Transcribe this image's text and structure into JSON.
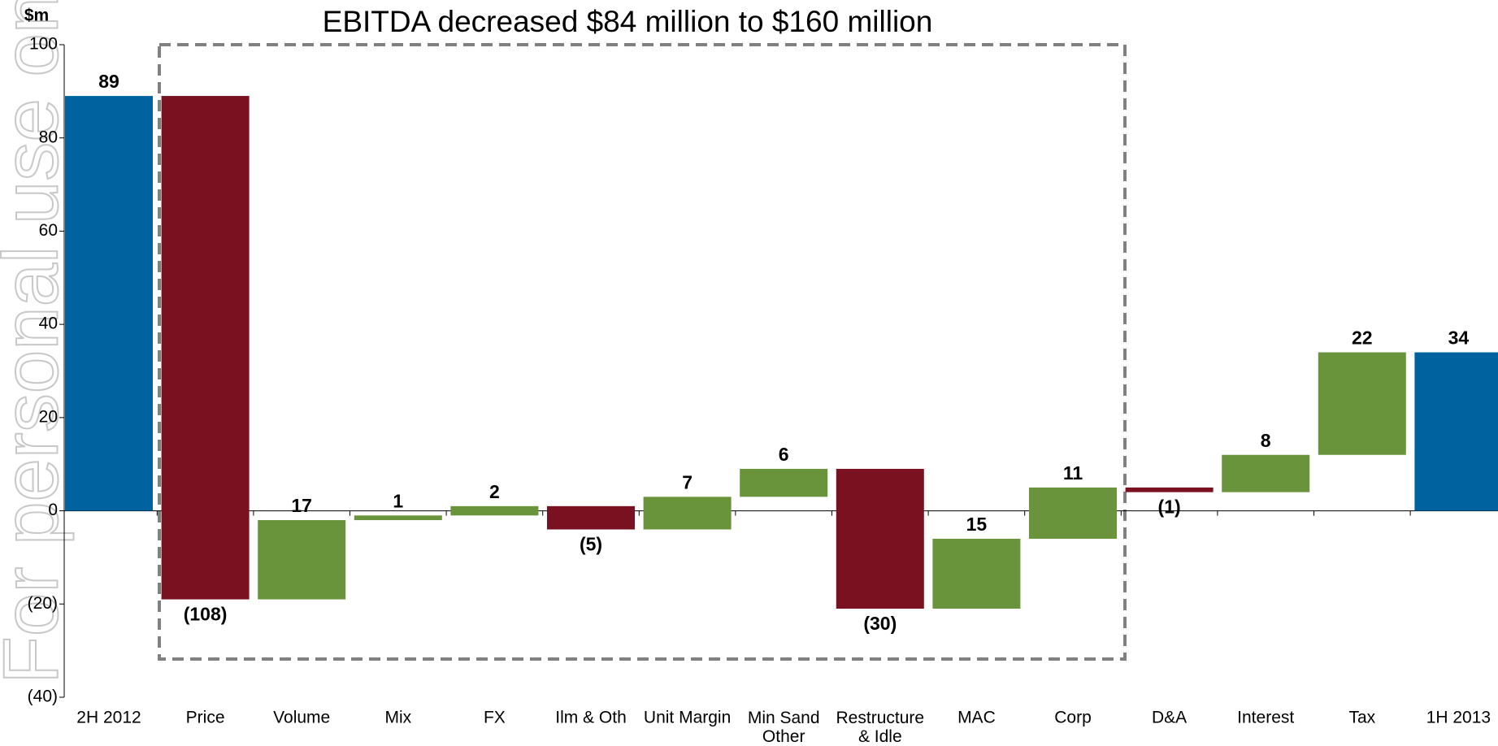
{
  "chart_data": {
    "type": "waterfall",
    "title": "EBITDA decreased $84 million to $160 million",
    "y_label": "$m",
    "watermark": "For personal use only",
    "categories": [
      "2H 2012",
      "Price",
      "Volume",
      "Mix",
      "FX",
      "Ilm & Oth",
      "Unit Margin",
      "Min Sand Other",
      "Restructure & Idle",
      "MAC",
      "Corp",
      "D&A",
      "Interest",
      "Tax",
      "1H 2013"
    ],
    "values": [
      89,
      -108,
      17,
      1,
      2,
      -5,
      7,
      6,
      -30,
      15,
      11,
      -1,
      8,
      22,
      34
    ],
    "value_labels": [
      "89",
      "(108)",
      "17",
      "1",
      "2",
      "(5)",
      "7",
      "6",
      "(30)",
      "15",
      "11",
      "(1)",
      "8",
      "22",
      "34"
    ],
    "measure": [
      "total",
      "relative",
      "relative",
      "relative",
      "relative",
      "relative",
      "relative",
      "relative",
      "relative",
      "relative",
      "relative",
      "relative",
      "relative",
      "relative",
      "total"
    ],
    "colors": {
      "total": "#0063a0",
      "increase": "#6a943b",
      "decrease": "#7a1121"
    },
    "ylim": [
      -40,
      100
    ],
    "yticks": [
      {
        "value": -40,
        "label": "(40)"
      },
      {
        "value": -20,
        "label": "(20)"
      },
      0,
      20,
      40,
      60,
      80,
      100
    ]
  }
}
